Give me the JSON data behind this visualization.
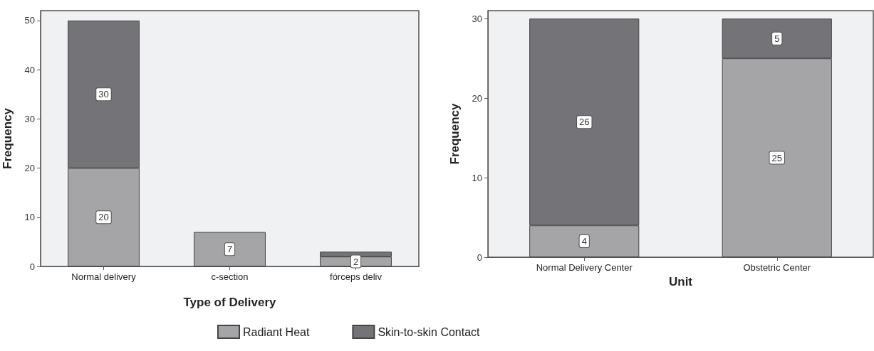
{
  "chart_data": [
    {
      "type": "bar",
      "stacked": true,
      "xlabel": "Type of Delivery",
      "ylabel": "Frequency",
      "categories": [
        "Normal delivery",
        "c-section",
        "fórceps deliv"
      ],
      "ylim": [
        0,
        52
      ],
      "yticks": [
        0,
        10,
        20,
        30,
        40,
        50
      ],
      "grid": false,
      "legend": "bottom",
      "series": [
        {
          "name": "Radiant Heat",
          "color": "#a5a5a8",
          "values": [
            20,
            7,
            2
          ],
          "value_labels": [
            "20",
            "7",
            "2"
          ]
        },
        {
          "name": "Skin-to-skin Contact",
          "color": "#747478",
          "values": [
            30,
            null,
            1
          ],
          "value_labels": [
            "30",
            null,
            null
          ]
        }
      ]
    },
    {
      "type": "bar",
      "stacked": true,
      "xlabel": "Unit",
      "ylabel": "Frequency",
      "categories": [
        "Normal Delivery Center",
        "Obstetric Center"
      ],
      "ylim": [
        0,
        31
      ],
      "yticks": [
        0,
        10,
        20,
        30
      ],
      "grid": false,
      "series": [
        {
          "color": "#a5a5a8",
          "values": [
            4,
            25
          ],
          "value_labels": [
            "4",
            "25"
          ]
        },
        {
          "color": "#747478",
          "values": [
            26,
            5
          ],
          "value_labels": [
            "26",
            "5"
          ]
        }
      ]
    }
  ]
}
